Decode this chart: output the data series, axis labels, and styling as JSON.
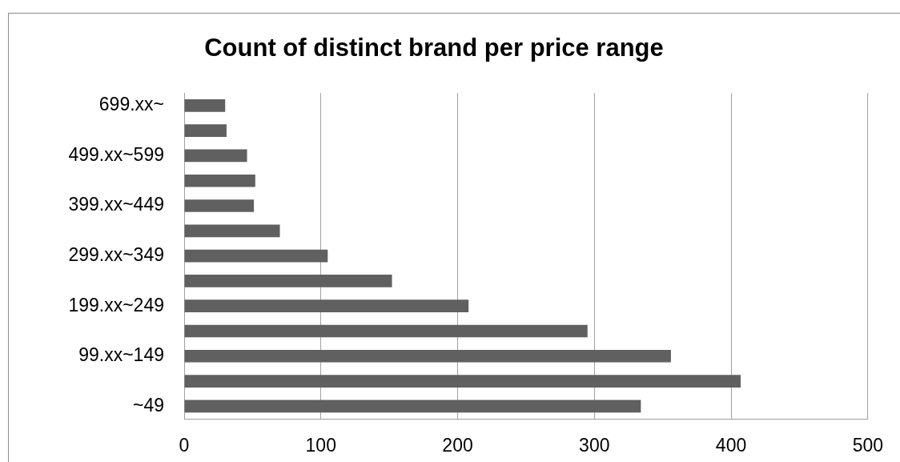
{
  "chart_data": {
    "type": "bar",
    "orientation": "horizontal",
    "title": "Count of distinct brand per price range",
    "categories": [
      "699.xx~",
      null,
      "499.xx~599",
      null,
      "399.xx~449",
      null,
      "299.xx~349",
      null,
      "199.xx~249",
      null,
      "99.xx~149",
      null,
      "~49"
    ],
    "values": [
      30,
      31,
      46,
      52,
      51,
      70,
      105,
      152,
      208,
      295,
      356,
      407,
      334
    ],
    "color": "#606060",
    "xlim": [
      0,
      500
    ],
    "xticks": [
      0,
      100,
      200,
      300,
      400,
      500
    ],
    "grid": "x"
  }
}
